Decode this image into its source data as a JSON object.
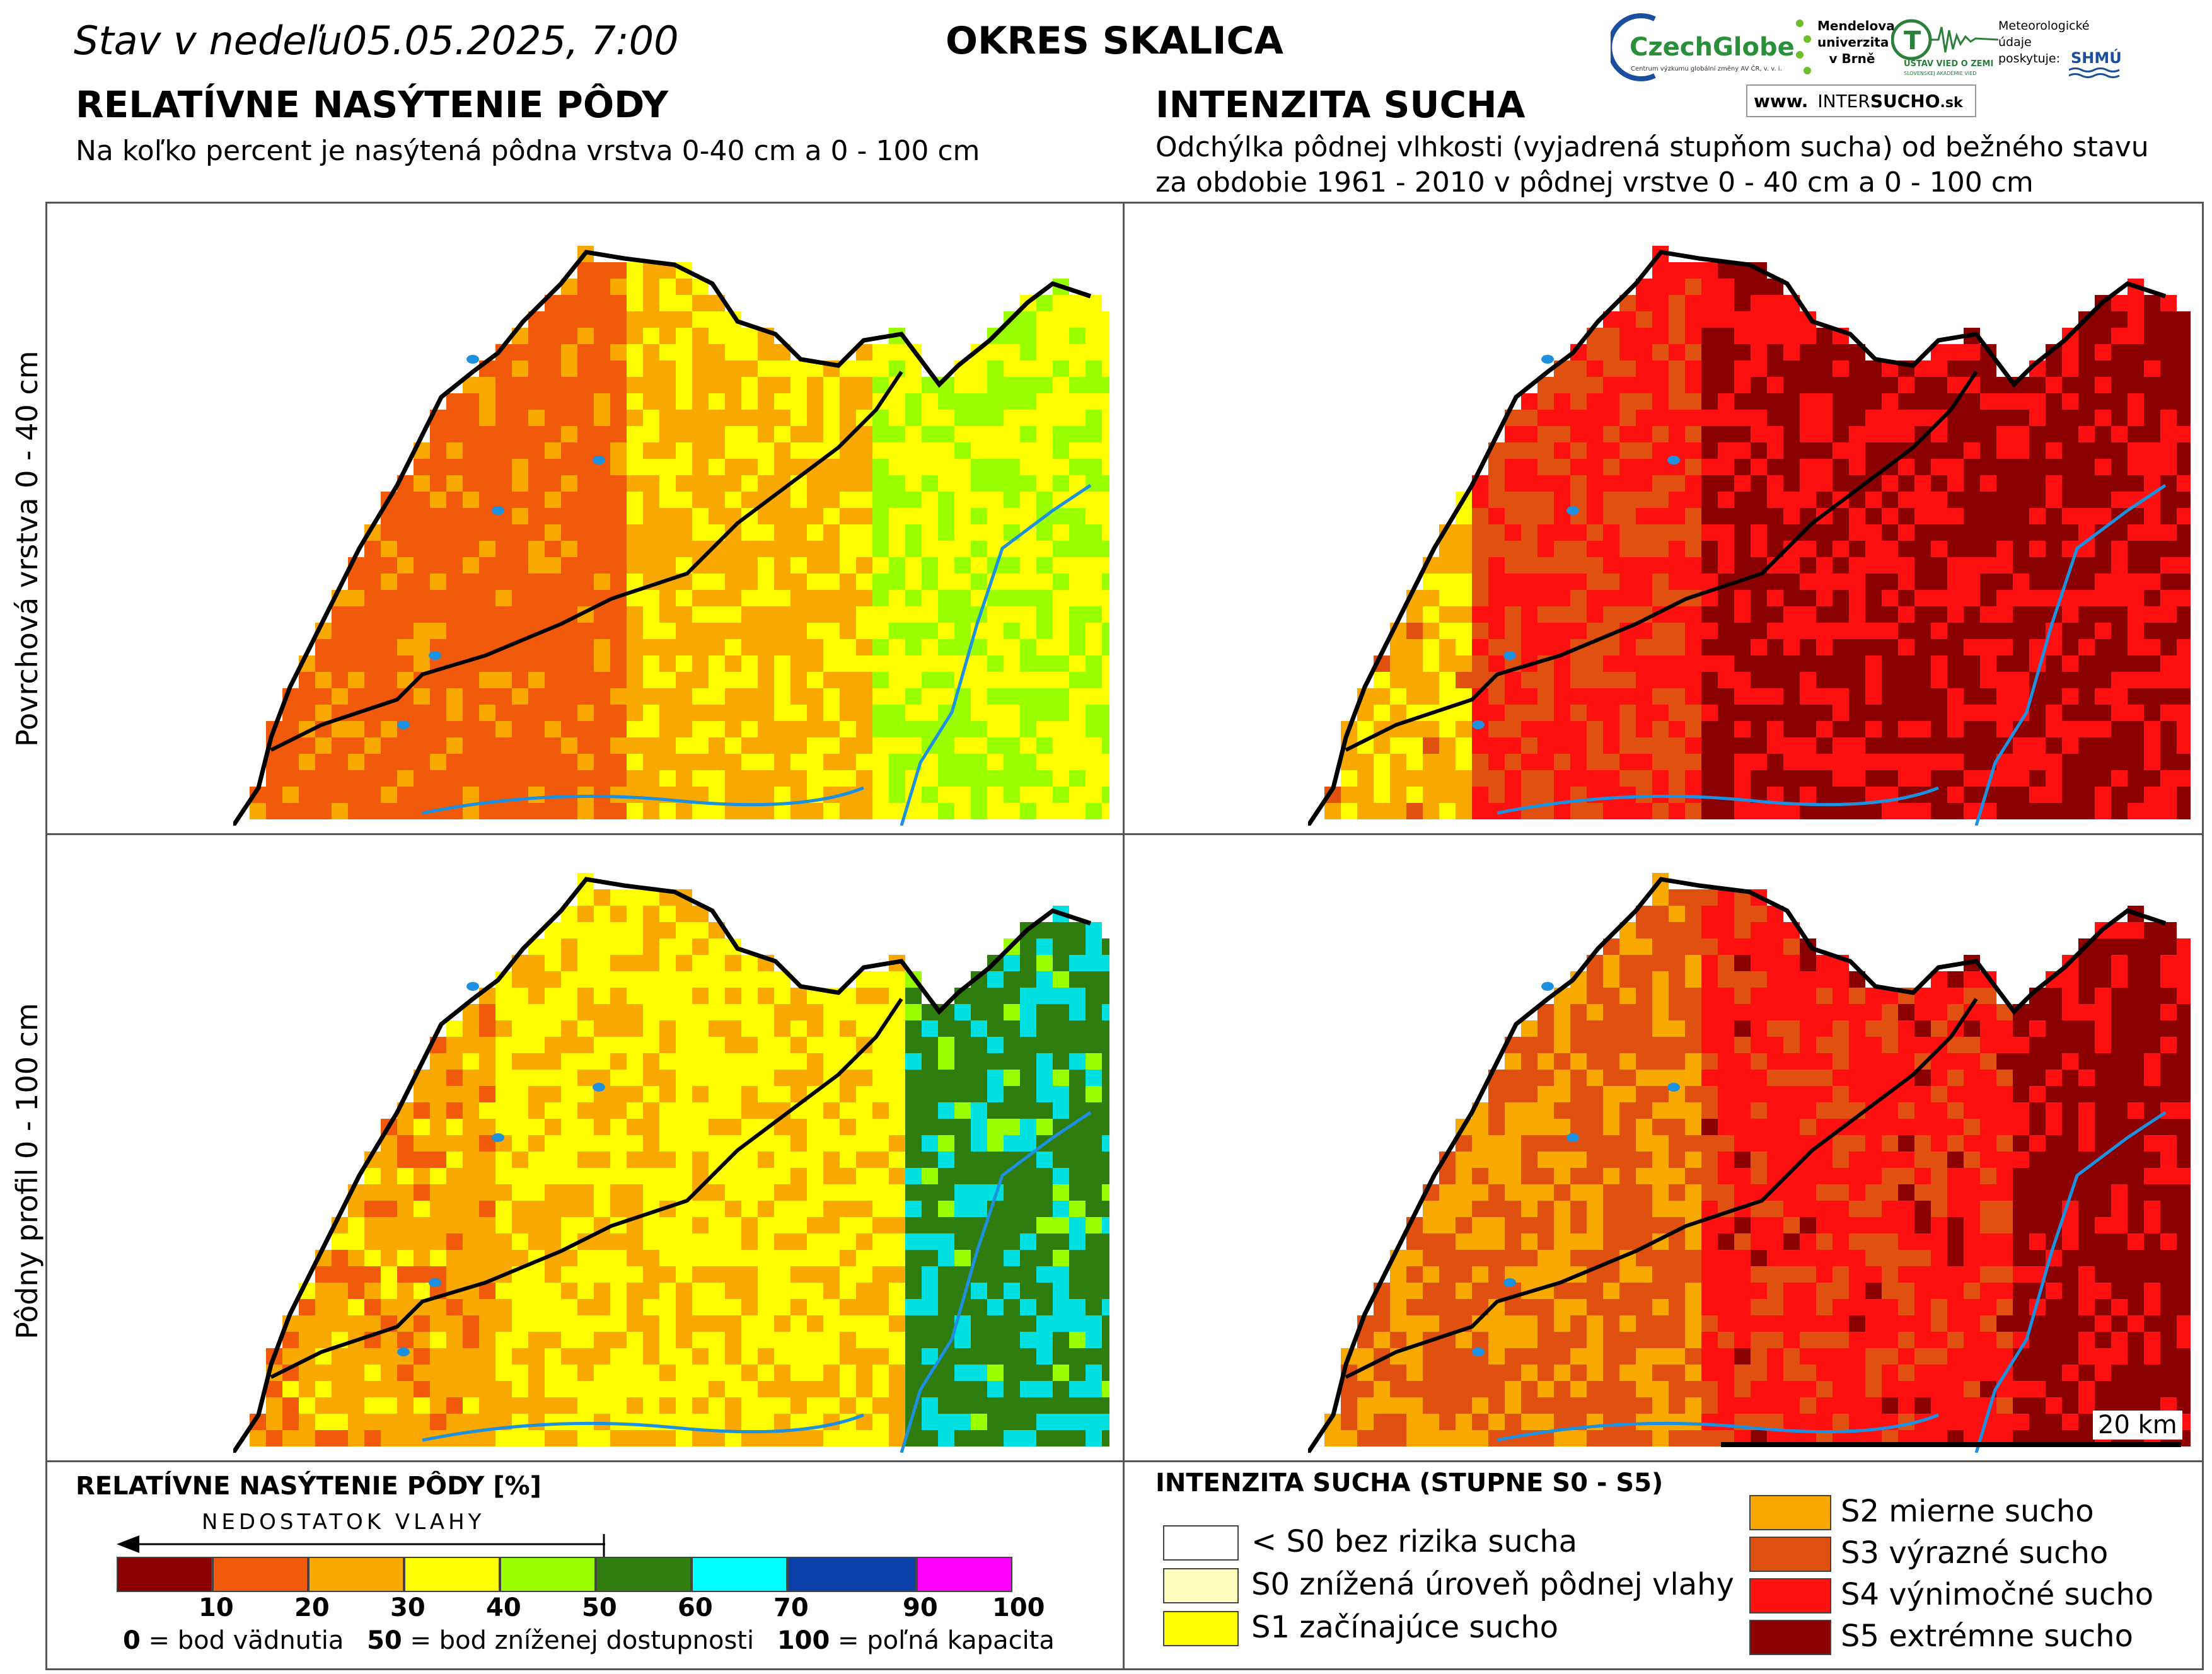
{
  "header": {
    "date_line": "Stav v nedeľu05.05.2025, 7:00",
    "region": "OKRES  SKALICA",
    "left_title": "RELATÍVNE NASÝTENIE PÔDY",
    "left_subtitle": "Na koľko percent je nasýtená pôdna vrstva 0-40 cm a 0 - 100 cm",
    "right_title": "INTENZITA SUCHA",
    "right_subtitle_1": "Odchýlka pôdnej vlhkosti (vyjadrená stupňom sucha) od bežného stavu",
    "right_subtitle_2": "za obdobie 1961 - 2010 v pôdnej vrstve 0 - 40 cm a 0 - 100 cm"
  },
  "logos": {
    "czechglobe": "CzechGlobe",
    "czechglobe_sub": "Centrum výzkumu globální změny AV ČR, v. v. i.",
    "mendelu": "Mendelova univerzita v Brně",
    "ustav": "ÚSTAV VIED O ZEMI",
    "ustav_sub": "SLOVENSKEJ AKADÉMIE VIED",
    "meteo": "Meteorologické údaje poskytuje:",
    "shmu": "SHMÚ",
    "intersucho_prefix": "www.",
    "intersucho_a": "INTER",
    "intersucho_b": "SUCHO",
    "intersucho_c": ".sk"
  },
  "row_labels": {
    "top": "Povrchová vrstva 0 - 40 cm",
    "bottom": "Pôdny profil 0 - 100 cm"
  },
  "scale_bar": "20 km",
  "saturation_legend": {
    "title": "RELATÍVNE NASÝTENIE PÔDY [%]",
    "arrow_label": "NEDOSTATOK VLAHY",
    "colors": [
      "#8b0000",
      "#f05a0a",
      "#f9a800",
      "#ffff00",
      "#9aff00",
      "#2e7d0e",
      "#00ffff",
      "#0a3fa8",
      "#ff00ff"
    ],
    "ticks": [
      "10",
      "20",
      "30",
      "40",
      "50",
      "60",
      "70",
      "90",
      "100"
    ],
    "note_0_num": "0",
    "note_0_text": " = bod vädnutia",
    "note_50_num": "50",
    "note_50_text": " = bod zníženej dostupnosti",
    "note_100_num": "100",
    "note_100_text": " = poľná kapacita"
  },
  "drought_legend": {
    "title": "INTENZITA SUCHA (STUPNE S0 - S5)",
    "items": [
      {
        "label": "< S0 bez rizika sucha",
        "color": "#ffffff"
      },
      {
        "label": "S0 znížená úroveň pôdnej vlahy",
        "color": "#ffffc0"
      },
      {
        "label": "S1 začínajúce sucho",
        "color": "#ffff00"
      },
      {
        "label": "S2 mierne sucho",
        "color": "#f9a800"
      },
      {
        "label": "S3 výrazné sucho",
        "color": "#e05010"
      },
      {
        "label": "S4 výnimočné sucho",
        "color": "#ff1010"
      },
      {
        "label": "S5 extrémne sucho",
        "color": "#8b0000"
      }
    ]
  },
  "maps": [
    {
      "name": "saturation-surface",
      "palette": [
        "#f05a0a",
        "#f9a800",
        "#ffff00",
        "#9aff00"
      ]
    },
    {
      "name": "drought-surface",
      "palette": [
        "#8b0000",
        "#ff1010",
        "#e05010",
        "#f9a800",
        "#ffff00"
      ]
    },
    {
      "name": "saturation-profile",
      "palette": [
        "#f05a0a",
        "#f9a800",
        "#ffff00",
        "#9aff00",
        "#2e7d0e",
        "#00e0e0"
      ]
    },
    {
      "name": "drought-profile",
      "palette": [
        "#8b0000",
        "#ff1010",
        "#e05010",
        "#f9a800",
        "#ffff00"
      ]
    }
  ]
}
